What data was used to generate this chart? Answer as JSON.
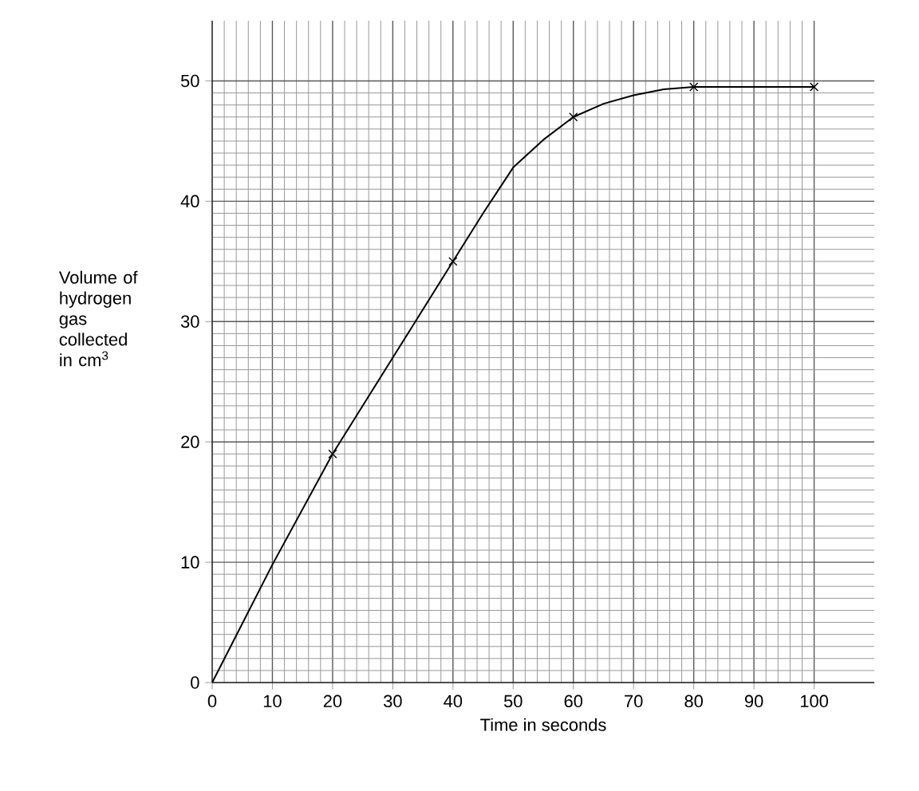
{
  "chart_data": {
    "type": "line",
    "xlabel": "Time in seconds",
    "ylabel": "Volume of hydrogen gas collected in cm$^{3}$",
    "xlim": [
      0,
      110
    ],
    "ylim": [
      0,
      55
    ],
    "xticks": [
      0,
      10,
      20,
      30,
      40,
      50,
      60,
      70,
      80,
      90,
      100
    ],
    "yticks": [
      0,
      10,
      20,
      30,
      40,
      50
    ],
    "grid": true,
    "series": [
      {
        "color": "#000000",
        "line_style": "solid",
        "x": [
          0,
          10,
          20,
          30,
          40,
          45,
          50,
          55,
          60,
          65,
          70,
          75,
          80,
          100
        ],
        "values": [
          0,
          9.8,
          19,
          27,
          35,
          39,
          42.8,
          45.1,
          47,
          48.1,
          48.8,
          49.3,
          49.5,
          49.5
        ]
      },
      {
        "type": "scatter",
        "color": "#000000",
        "marker": "cross",
        "x": [
          20,
          40,
          60,
          80,
          100
        ],
        "values": [
          19,
          35,
          47,
          49.5,
          49.5
        ]
      }
    ]
  }
}
